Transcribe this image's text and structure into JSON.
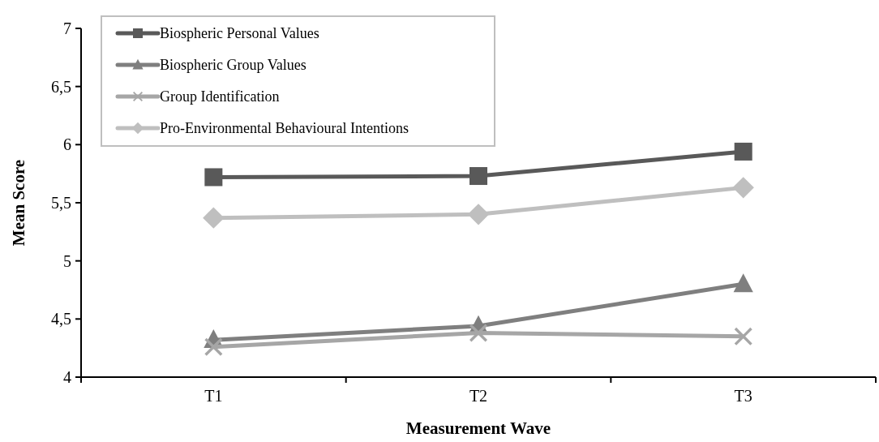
{
  "chart_data": {
    "type": "line",
    "xlabel": "Measurement Wave",
    "ylabel": "Mean Score",
    "categories": [
      "T1",
      "T2",
      "T3"
    ],
    "ylim": [
      4,
      7
    ],
    "yticks": [
      4,
      {
        "value": 4.5,
        "label": "4,5"
      },
      5,
      {
        "value": 5.5,
        "label": "5,5"
      },
      6,
      {
        "value": 6.5,
        "label": "6,5"
      },
      7
    ],
    "legend": "top left",
    "grid": false,
    "series": [
      {
        "name": "Biospheric Personal Values",
        "color": "#595959",
        "marker": "square",
        "values": [
          5.72,
          5.73,
          5.94
        ]
      },
      {
        "name": "Biospheric Group Values",
        "color": "#7f7f7f",
        "marker": "triangle",
        "values": [
          4.32,
          4.44,
          4.8
        ]
      },
      {
        "name": "Group Identification",
        "color": "#a6a6a6",
        "marker": "cross",
        "values": [
          4.26,
          4.38,
          4.35
        ]
      },
      {
        "name": "Pro-Environmental Behavioural Intentions",
        "color": "#bfbfbf",
        "marker": "diamond",
        "values": [
          5.37,
          5.4,
          5.63
        ]
      }
    ]
  }
}
